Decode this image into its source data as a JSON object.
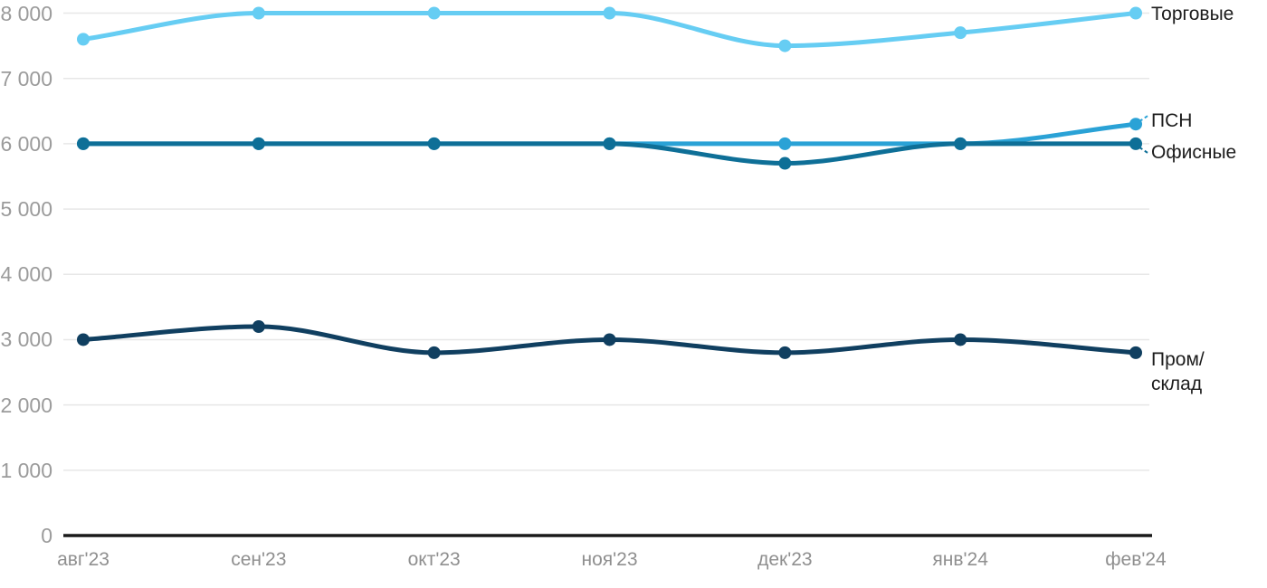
{
  "chart_data": {
    "type": "line",
    "title": "",
    "categories": [
      "авг'23",
      "сен'23",
      "окт'23",
      "ноя'23",
      "дек'23",
      "янв'24",
      "фев'24"
    ],
    "y_ticks": [
      {
        "label": "0",
        "value": 0
      },
      {
        "label": "1 000",
        "value": 1000
      },
      {
        "label": "2 000",
        "value": 2000
      },
      {
        "label": "3 000",
        "value": 3000
      },
      {
        "label": "4 000",
        "value": 4000
      },
      {
        "label": "5 000",
        "value": 5000
      },
      {
        "label": "6 000",
        "value": 6000
      },
      {
        "label": "7 000",
        "value": 7000
      },
      {
        "label": "8 000",
        "value": 8000
      }
    ],
    "ylim": [
      0,
      8000
    ],
    "grid": "horizontal",
    "legend_position": "right-of-last-point",
    "series": [
      {
        "name": "Торговые",
        "slug": "torgovye",
        "color": "#66CDF3",
        "values": [
          7600,
          8000,
          8000,
          8000,
          7500,
          7700,
          8000
        ],
        "label_lines": [
          "Торговые"
        ],
        "label_connector": "none"
      },
      {
        "name": "ПСН",
        "slug": "psn",
        "color": "#2AA2D6",
        "values": [
          6000,
          6000,
          6000,
          6000,
          6000,
          6000,
          6300
        ],
        "label_lines": [
          "ПСН"
        ],
        "label_connector": "dashed-up"
      },
      {
        "name": "Офисные",
        "slug": "ofisnye",
        "color": "#0E6F97",
        "values": [
          6000,
          6000,
          6000,
          6000,
          5700,
          6000,
          6000
        ],
        "label_lines": [
          "Офисные"
        ],
        "label_connector": "dashed-down"
      },
      {
        "name": "Пром/склад",
        "slug": "prom-sklad",
        "color": "#103F60",
        "values": [
          3000,
          3200,
          2800,
          3000,
          2800,
          3000,
          2800
        ],
        "label_lines": [
          "Пром/",
          "склад"
        ],
        "label_connector": "none"
      }
    ],
    "colors": {
      "background": "#FFFFFF",
      "grid": "#E7E7E7",
      "axis": "#1A1A1A",
      "y_tick_label": "#9B9B9B",
      "x_tick_label": "#8F8F8F",
      "legend_text": "#1C1C1C"
    }
  }
}
